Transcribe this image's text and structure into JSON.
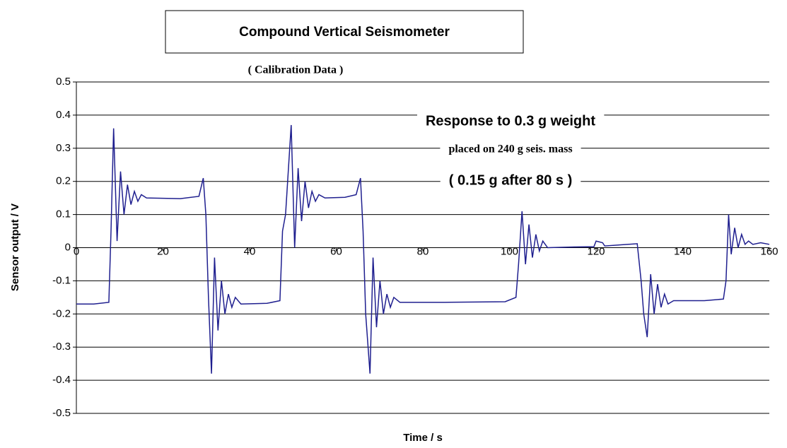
{
  "chart_data": {
    "type": "line",
    "title": "Compound Vertical Seismometer",
    "subtitle": "( Calibration Data )",
    "x_label": "Time / s",
    "y_label": "Sensor output / V",
    "annotations": [
      "Response to 0.3 g weight",
      "placed on 240 g seis. mass",
      "( 0.15 g after 80 s )"
    ],
    "xlim": [
      0,
      160
    ],
    "xticks": [
      0,
      20,
      40,
      60,
      80,
      100,
      120,
      140,
      160
    ],
    "ylim": [
      -0.5,
      0.5
    ],
    "yticks": [
      0.5,
      0.4,
      0.3,
      0.2,
      0.1,
      0,
      -0.1,
      -0.2,
      -0.3,
      -0.4,
      -0.5
    ],
    "grid": true,
    "series": [
      {
        "color": "#1f1f8f",
        "x": [
          0,
          4,
          7.5,
          8.0,
          8.6,
          9.4,
          10.2,
          11.0,
          11.8,
          12.6,
          13.4,
          14.2,
          15.0,
          16.2,
          24,
          28.3,
          29.3,
          29.9,
          30.5,
          31.2,
          31.9,
          32.7,
          33.5,
          34.3,
          35.1,
          35.9,
          36.7,
          38,
          44,
          47,
          47.6,
          48.3,
          49.6,
          50.4,
          51.2,
          52.0,
          52.8,
          53.6,
          54.4,
          55.2,
          56.0,
          57.4,
          62,
          64.6,
          65.6,
          66.2,
          66.8,
          67.8,
          68.5,
          69.3,
          70.1,
          70.9,
          71.7,
          72.5,
          73.3,
          74.7,
          85,
          99,
          101.5,
          102.1,
          102.9,
          103.7,
          104.5,
          105.3,
          106.1,
          106.9,
          107.7,
          108.8,
          115,
          119.5,
          120,
          121.5,
          122,
          129.5,
          130.4,
          131.0,
          131.8,
          132.6,
          133.4,
          134.2,
          135.0,
          135.8,
          136.6,
          137.9,
          145,
          149.4,
          150.0,
          150.6,
          151.2,
          152.0,
          152.8,
          153.6,
          154.4,
          155.2,
          156.2,
          158,
          160
        ],
        "values": [
          -0.17,
          -0.17,
          -0.165,
          0.05,
          0.36,
          0.02,
          0.23,
          0.1,
          0.19,
          0.13,
          0.17,
          0.14,
          0.16,
          0.15,
          0.148,
          0.155,
          0.21,
          0.1,
          -0.15,
          -0.38,
          -0.03,
          -0.25,
          -0.1,
          -0.2,
          -0.14,
          -0.18,
          -0.15,
          -0.17,
          -0.168,
          -0.16,
          0.05,
          0.1,
          0.37,
          0.0,
          0.24,
          0.08,
          0.2,
          0.12,
          0.17,
          0.14,
          0.16,
          0.15,
          0.152,
          0.16,
          0.21,
          0.05,
          -0.2,
          -0.38,
          -0.03,
          -0.24,
          -0.1,
          -0.2,
          -0.14,
          -0.18,
          -0.15,
          -0.165,
          -0.165,
          -0.163,
          -0.15,
          -0.05,
          0.11,
          -0.05,
          0.07,
          -0.03,
          0.04,
          -0.01,
          0.02,
          0,
          0.002,
          0.003,
          0.02,
          0.015,
          0.005,
          0.012,
          -0.1,
          -0.2,
          -0.27,
          -0.08,
          -0.2,
          -0.11,
          -0.18,
          -0.14,
          -0.17,
          -0.16,
          -0.16,
          -0.155,
          -0.1,
          0.1,
          -0.02,
          0.06,
          0,
          0.04,
          0.01,
          0.02,
          0.01,
          0.015,
          0.01
        ]
      }
    ]
  }
}
